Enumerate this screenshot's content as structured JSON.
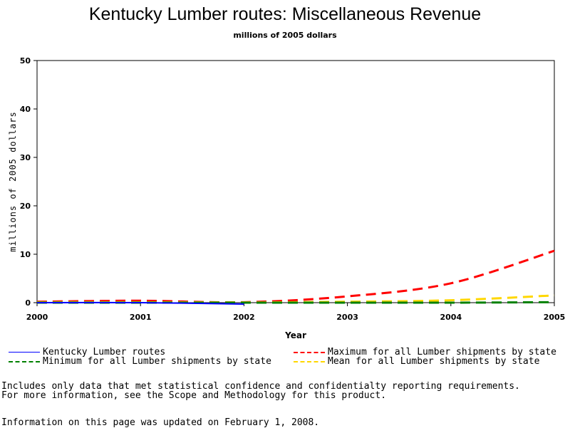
{
  "chart_data": {
    "type": "line",
    "title": "Kentucky Lumber routes: Miscellaneous Revenue",
    "subtitle": "millions of 2005 dollars",
    "xlabel": "Year",
    "ylabel": "millions of 2005 dollars",
    "x": [
      2000,
      2001,
      2002,
      2003,
      2004,
      2005
    ],
    "xlim": [
      2000,
      2005
    ],
    "ylim": [
      0,
      50
    ],
    "yticks": [
      0,
      10,
      20,
      30,
      40,
      50
    ],
    "series": [
      {
        "name": "Kentucky Lumber routes",
        "color": "#0000ff",
        "style": "solid",
        "values": [
          0.0,
          0.0,
          -0.3,
          null,
          null,
          null
        ]
      },
      {
        "name": "Maximum for all Lumber shipments by state",
        "color": "#ff0000",
        "style": "dashed",
        "values": [
          0.2,
          0.4,
          0.1,
          1.3,
          4.0,
          10.7
        ]
      },
      {
        "name": "Minimum for all Lumber shipments by state",
        "color": "#008000",
        "style": "dashed",
        "values": [
          0.0,
          0.0,
          0.0,
          0.0,
          0.0,
          0.1
        ]
      },
      {
        "name": "Mean for all Lumber shipments by state",
        "color": "#ffd700",
        "style": "dashed",
        "values": [
          0.1,
          0.1,
          0.05,
          0.2,
          0.5,
          1.5
        ]
      }
    ],
    "legend": "bottom",
    "grid": false
  },
  "notes": {
    "line1": "Includes only data that met statistical confidence and confidentialty reporting requirements.",
    "line2": "For more information, see the Scope and Methodology for this product.",
    "updated": "Information on this page was updated on February 1, 2008."
  }
}
